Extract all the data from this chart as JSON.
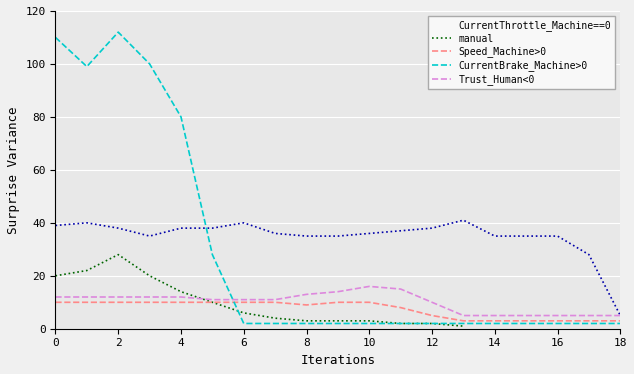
{
  "title": "",
  "xlabel": "Iterations",
  "ylabel": "Surprise Variance",
  "xlim": [
    0,
    18
  ],
  "ylim": [
    0,
    120
  ],
  "yticks": [
    0,
    20,
    40,
    60,
    80,
    100,
    120
  ],
  "xticks": [
    0,
    2,
    4,
    6,
    8,
    10,
    12,
    14,
    16,
    18
  ],
  "series": [
    {
      "label": "CurrentThrottle_Machine==0",
      "color": "#0000aa",
      "linestyle": "dotted",
      "linewidth": 1.2,
      "x": [
        0,
        1,
        2,
        3,
        4,
        5,
        6,
        7,
        8,
        9,
        10,
        11,
        12,
        13,
        14,
        15,
        16,
        17,
        18
      ],
      "y": [
        39,
        40,
        38,
        35,
        38,
        38,
        40,
        36,
        35,
        35,
        36,
        37,
        38,
        41,
        35,
        35,
        35,
        28,
        5
      ]
    },
    {
      "label": "manual",
      "color": "#006600",
      "linestyle": "dotted",
      "linewidth": 1.2,
      "x": [
        0,
        1,
        2,
        3,
        4,
        5,
        6,
        7,
        8,
        9,
        10,
        11,
        12,
        13
      ],
      "y": [
        20,
        22,
        28,
        20,
        14,
        10,
        6,
        4,
        3,
        3,
        3,
        2,
        2,
        1
      ]
    },
    {
      "label": "Speed_Machine>0",
      "color": "#ff8888",
      "linestyle": "dashed",
      "linewidth": 1.2,
      "x": [
        0,
        1,
        2,
        3,
        4,
        5,
        6,
        7,
        8,
        9,
        10,
        11,
        12,
        13,
        14,
        15,
        16,
        17,
        18
      ],
      "y": [
        10,
        10,
        10,
        10,
        10,
        10,
        10,
        10,
        9,
        10,
        10,
        8,
        5,
        3,
        3,
        3,
        3,
        3,
        3
      ]
    },
    {
      "label": "CurrentBrake_Machine>0",
      "color": "#00cccc",
      "linestyle": "dashed",
      "linewidth": 1.2,
      "x": [
        0,
        1,
        2,
        3,
        4,
        5,
        6,
        7,
        8,
        9,
        10,
        11,
        12,
        13,
        14,
        15,
        16,
        17,
        18
      ],
      "y": [
        110,
        99,
        112,
        100,
        80,
        28,
        2,
        2,
        2,
        2,
        2,
        2,
        2,
        2,
        2,
        2,
        2,
        2,
        2
      ]
    },
    {
      "label": "Trust_Human<0",
      "color": "#dd88dd",
      "linestyle": "dashed",
      "linewidth": 1.2,
      "x": [
        0,
        1,
        2,
        3,
        4,
        5,
        6,
        7,
        8,
        9,
        10,
        11,
        12,
        13,
        14,
        15,
        16,
        17,
        18
      ],
      "y": [
        12,
        12,
        12,
        12,
        12,
        11,
        11,
        11,
        13,
        14,
        16,
        15,
        10,
        5,
        5,
        5,
        5,
        5,
        5
      ]
    }
  ],
  "legend_entries": [
    {
      "label": "CurrentThrottle_Machine==0",
      "color": "none",
      "linestyle": "none"
    },
    {
      "label": "manual",
      "color": "#006600",
      "linestyle": "dotted"
    },
    {
      "label": "Speed_Machine>0",
      "color": "#ff8888",
      "linestyle": "dashed"
    },
    {
      "label": "CurrentBrake_Machine>0",
      "color": "#00cccc",
      "linestyle": "dashed"
    },
    {
      "label": "Trust_Human<0",
      "color": "#dd88dd",
      "linestyle": "dashed"
    }
  ],
  "bg_color": "#e8e8e8",
  "fig_bg_color": "#f0f0f0",
  "figsize": [
    6.34,
    3.74
  ],
  "dpi": 100
}
